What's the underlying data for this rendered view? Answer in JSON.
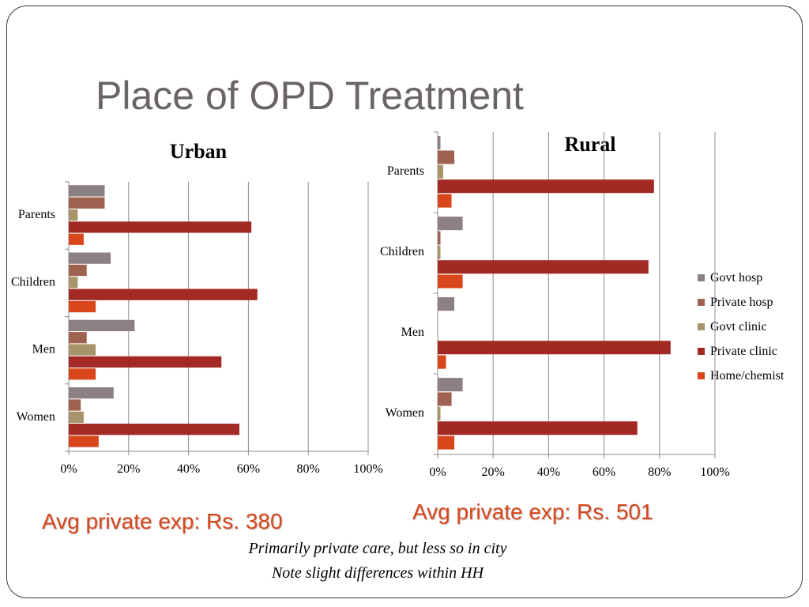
{
  "slide": {
    "title": "Place of OPD Treatment"
  },
  "series_colors": {
    "Govt hosp": "#8c8082",
    "Private hosp": "#a06250",
    "Govt clinic": "#a8946a",
    "Private clinic": "#a32a24",
    "Home/chemist": "#d9461c"
  },
  "chart_data": [
    {
      "type": "bar",
      "orientation": "horizontal",
      "title": "Urban",
      "categories": [
        "Parents",
        "Children",
        "Men",
        "Women"
      ],
      "xlim": [
        0,
        100
      ],
      "x_ticks": [
        "0%",
        "20%",
        "40%",
        "60%",
        "80%",
        "100%"
      ],
      "grid": true,
      "series": [
        {
          "name": "Govt hosp",
          "values": [
            12,
            14,
            22,
            15
          ]
        },
        {
          "name": "Private hosp",
          "values": [
            12,
            6,
            6,
            4
          ]
        },
        {
          "name": "Govt clinic",
          "values": [
            3,
            3,
            9,
            5
          ]
        },
        {
          "name": "Private clinic",
          "values": [
            61,
            63,
            51,
            57
          ]
        },
        {
          "name": "Home/chemist",
          "values": [
            5,
            9,
            9,
            10
          ]
        }
      ]
    },
    {
      "type": "bar",
      "orientation": "horizontal",
      "title": "Rural",
      "categories": [
        "Parents",
        "Children",
        "Men",
        "Women"
      ],
      "xlim": [
        0,
        100
      ],
      "x_ticks": [
        "0%",
        "20%",
        "40%",
        "60%",
        "80%",
        "100%"
      ],
      "grid": true,
      "legend_position": "right",
      "series": [
        {
          "name": "Govt hosp",
          "values": [
            1,
            9,
            6,
            9
          ]
        },
        {
          "name": "Private hosp",
          "values": [
            6,
            1,
            0,
            5
          ]
        },
        {
          "name": "Govt clinic",
          "values": [
            2,
            1,
            0,
            1
          ]
        },
        {
          "name": "Private clinic",
          "values": [
            78,
            76,
            84,
            72
          ]
        },
        {
          "name": "Home/chemist",
          "values": [
            5,
            9,
            3,
            6
          ]
        }
      ]
    }
  ],
  "annotations": {
    "avg_urban": "Avg private exp: Rs. 380",
    "avg_rural": "Avg private exp: Rs. 501",
    "note_1": "Primarily private care, but less so in city",
    "note_2": "Note slight differences within HH"
  }
}
